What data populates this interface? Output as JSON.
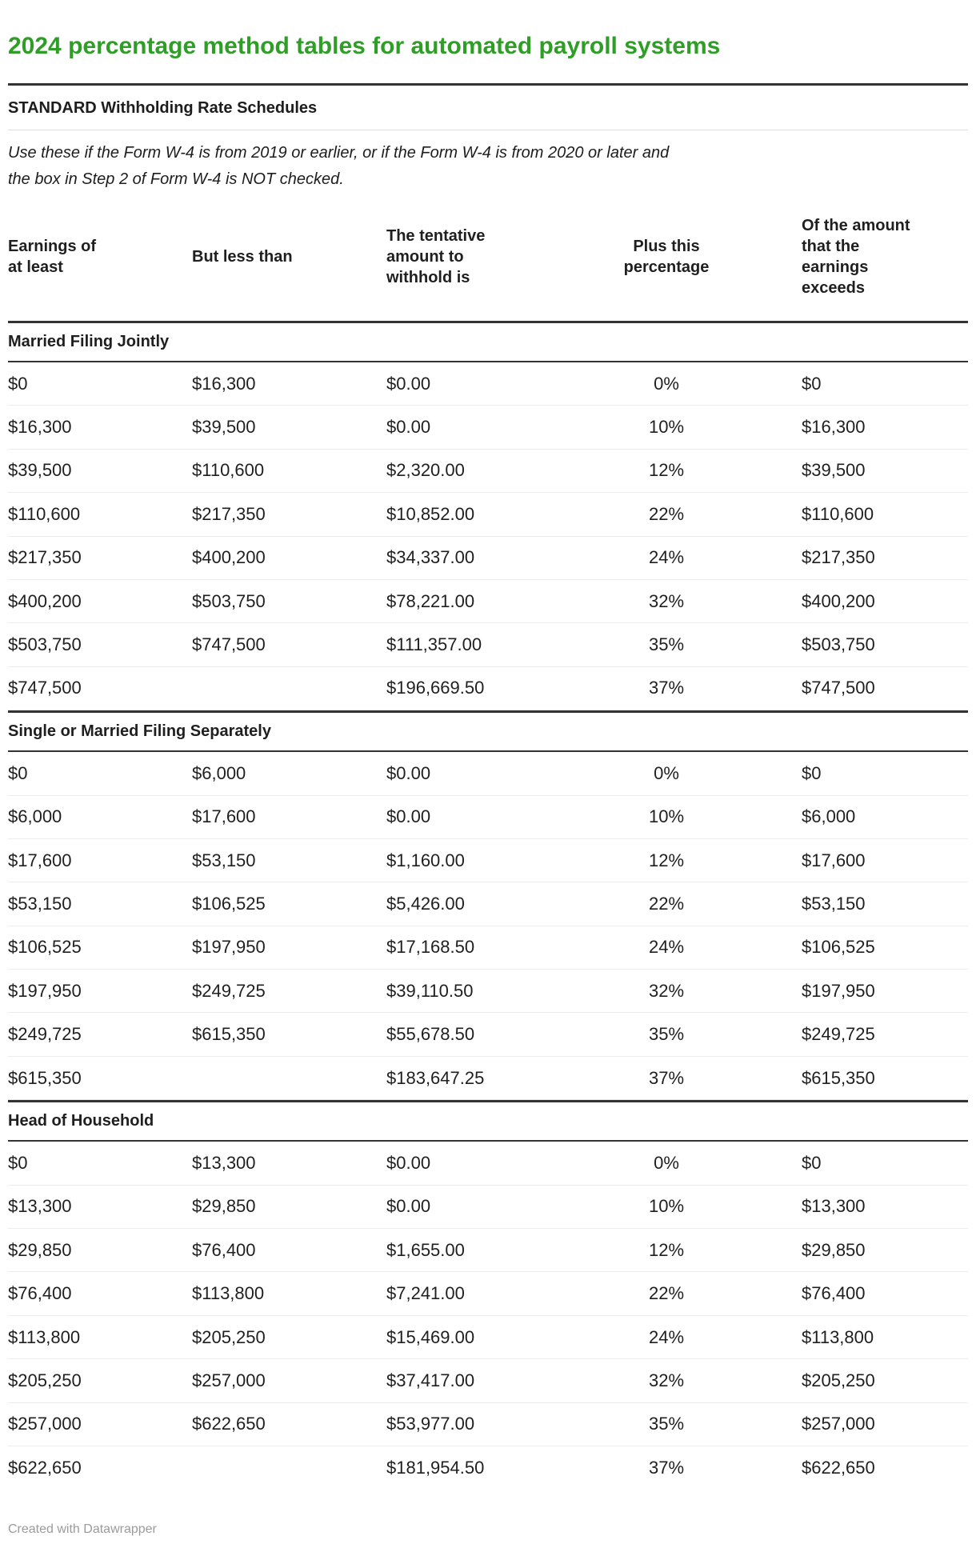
{
  "header": {
    "title": "2024 percentage method tables for automated payroll systems",
    "subtitle": "STANDARD Withholding Rate Schedules",
    "description_lines": [
      "Use these if the Form W-4 is from 2019 or earlier, or if the Form W-4 is from 2020 or later and",
      "the box in Step 2 of Form W-4 is NOT checked."
    ]
  },
  "chart_data": {
    "type": "table",
    "title": "2024 percentage method tables for automated payroll systems",
    "columns": [
      "Earnings of at least",
      "But less than",
      "The tentative amount to withhold is",
      "Plus this percentage",
      "Of the amount that the earnings exceeds"
    ],
    "sections": [
      {
        "label": "Married Filing Jointly",
        "rows": [
          [
            "$0",
            "$16,300",
            "$0.00",
            "0%",
            "$0"
          ],
          [
            "$16,300",
            "$39,500",
            "$0.00",
            "10%",
            "$16,300"
          ],
          [
            "$39,500",
            "$110,600",
            "$2,320.00",
            "12%",
            "$39,500"
          ],
          [
            "$110,600",
            "$217,350",
            "$10,852.00",
            "22%",
            "$110,600"
          ],
          [
            "$217,350",
            "$400,200",
            "$34,337.00",
            "24%",
            "$217,350"
          ],
          [
            "$400,200",
            "$503,750",
            "$78,221.00",
            "32%",
            "$400,200"
          ],
          [
            "$503,750",
            "$747,500",
            "$111,357.00",
            "35%",
            "$503,750"
          ],
          [
            "$747,500",
            "",
            "$196,669.50",
            "37%",
            "$747,500"
          ]
        ]
      },
      {
        "label": "Single or Married Filing Separately",
        "rows": [
          [
            "$0",
            "$6,000",
            "$0.00",
            "0%",
            "$0"
          ],
          [
            "$6,000",
            "$17,600",
            "$0.00",
            "10%",
            "$6,000"
          ],
          [
            "$17,600",
            "$53,150",
            "$1,160.00",
            "12%",
            "$17,600"
          ],
          [
            "$53,150",
            "$106,525",
            "$5,426.00",
            "22%",
            "$53,150"
          ],
          [
            "$106,525",
            "$197,950",
            "$17,168.50",
            "24%",
            "$106,525"
          ],
          [
            "$197,950",
            "$249,725",
            "$39,110.50",
            "32%",
            "$197,950"
          ],
          [
            "$249,725",
            "$615,350",
            "$55,678.50",
            "35%",
            "$249,725"
          ],
          [
            "$615,350",
            "",
            "$183,647.25",
            "37%",
            "$615,350"
          ]
        ]
      },
      {
        "label": "Head of Household",
        "rows": [
          [
            "$0",
            "$13,300",
            "$0.00",
            "0%",
            "$0"
          ],
          [
            "$13,300",
            "$29,850",
            "$0.00",
            "10%",
            "$13,300"
          ],
          [
            "$29,850",
            "$76,400",
            "$1,655.00",
            "12%",
            "$29,850"
          ],
          [
            "$76,400",
            "$113,800",
            "$7,241.00",
            "22%",
            "$76,400"
          ],
          [
            "$113,800",
            "$205,250",
            "$15,469.00",
            "24%",
            "$113,800"
          ],
          [
            "$205,250",
            "$257,000",
            "$37,417.00",
            "32%",
            "$205,250"
          ],
          [
            "$257,000",
            "$622,650",
            "$53,977.00",
            "35%",
            "$257,000"
          ],
          [
            "$622,650",
            "",
            "$181,954.50",
            "37%",
            "$622,650"
          ]
        ]
      }
    ]
  },
  "footer": {
    "credit": "Created with Datawrapper"
  },
  "colors": {
    "title_green": "#2e9e26",
    "text": "#1f1f1f",
    "rule_dark": "#333333",
    "rule_light": "#dddddd",
    "row_separator": "#ededed",
    "footer_gray": "#9b9b9b"
  }
}
